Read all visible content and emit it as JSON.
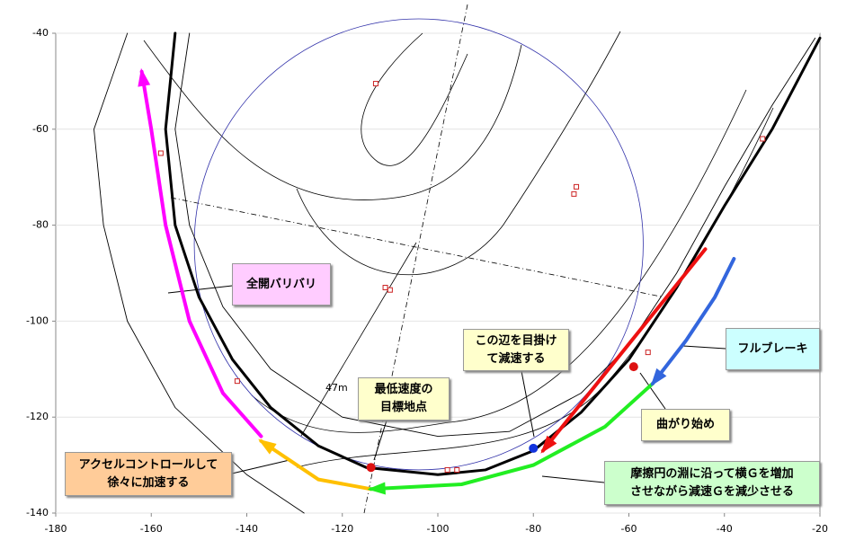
{
  "chart_data": {
    "type": "line",
    "xlim": [
      -180,
      -20
    ],
    "ylim": [
      -140,
      -40
    ],
    "xticks": [
      -180,
      -160,
      -140,
      -120,
      -100,
      -80,
      -60,
      -40,
      -20
    ],
    "yticks": [
      -140,
      -120,
      -100,
      -80,
      -60,
      -40
    ],
    "grid": true,
    "circle": {
      "cx": -104,
      "cy": -84,
      "r": 47,
      "color": "#3333aa"
    },
    "radius_label": "47m",
    "series": [
      {
        "color": "#000000",
        "x": [
          -165,
          -172,
          -170,
          -165,
          -155,
          -140,
          -128
        ],
        "values": [
          -40,
          -60,
          -80,
          -100,
          -118,
          -132,
          -140
        ]
      },
      {
        "color": "#000000",
        "x": [
          -152,
          -155,
          -152,
          -145,
          -135,
          -120,
          -100,
          -85,
          -70,
          -60,
          -50,
          -40,
          -30,
          -21
        ],
        "values": [
          -40,
          -60,
          -80,
          -97,
          -110,
          -120,
          -124,
          -123,
          -115,
          -105,
          -90,
          -72,
          -55,
          -41
        ]
      },
      {
        "color": "#000000",
        "x": [
          -155,
          -157,
          -155,
          -150,
          -143,
          -135,
          -125,
          -115,
          -100,
          -90,
          -80,
          -70,
          -60,
          -50,
          -40,
          -30,
          -20
        ],
        "values": [
          -40,
          -60,
          -80,
          -95,
          -108,
          -118,
          -126,
          -130.5,
          -132,
          -131,
          -127,
          -119,
          -108,
          -93,
          -76,
          -60,
          -41
        ]
      },
      {
        "color": "#ff00ff",
        "arrow": true,
        "x": [
          -137,
          -145,
          -152,
          -157,
          -160,
          -162
        ],
        "values": [
          -124,
          -115,
          -100,
          -80,
          -60,
          -48
        ]
      },
      {
        "color": "#ffc000",
        "arrow": true,
        "x": [
          -114,
          -125,
          -137
        ],
        "values": [
          -135,
          -133,
          -125
        ]
      },
      {
        "color": "#22ee22",
        "arrow": true,
        "x": [
          -55,
          -65,
          -80,
          -95,
          -114
        ],
        "values": [
          -113,
          -122,
          -130,
          -134,
          -135
        ]
      },
      {
        "color": "#ee1111",
        "arrow": true,
        "x": [
          -44,
          -78
        ],
        "values": [
          -85,
          -127
        ]
      },
      {
        "color": "#3366dd",
        "arrow": true,
        "x": [
          -38,
          -42,
          -48,
          -55
        ],
        "values": [
          -87,
          -95,
          -104,
          -113
        ]
      }
    ],
    "markers": {
      "color": "#cc2222",
      "x": [
        -113,
        -111,
        -110,
        -71,
        -71.5,
        -56,
        -32,
        -142,
        -158,
        -98,
        -96
      ],
      "values": [
        -50.5,
        -93,
        -93.5,
        -72,
        -73.5,
        -106.5,
        -62,
        -112.5,
        -65,
        -131,
        -131
      ]
    },
    "points": {
      "colors": [
        "#dd1111",
        "#1133dd",
        "#dd1111"
      ],
      "x": [
        -114,
        -80,
        -59
      ],
      "values": [
        -130.5,
        -126.5,
        -109.5
      ]
    },
    "annotations": [
      {
        "lines": [
          "全開バリバリ"
        ],
        "color": "#ffccff"
      },
      {
        "lines": [
          "この辺を目掛け",
          "て減速する"
        ],
        "color": "#ffffcc"
      },
      {
        "lines": [
          "フルブレーキ"
        ],
        "color": "#ccffff"
      },
      {
        "lines": [
          "最低速度の",
          "目標地点"
        ],
        "color": "#ffffcc"
      },
      {
        "lines": [
          "曲がり始め"
        ],
        "color": "#ffffcc"
      },
      {
        "lines": [
          "アクセルコントロールして",
          "徐々に加速する"
        ],
        "color": "#ffcc99"
      },
      {
        "lines": [
          "摩擦円の淵に沿って横Ｇを増加",
          "させながら減速Ｇを減少させる"
        ],
        "color": "#ccffcc"
      }
    ]
  }
}
